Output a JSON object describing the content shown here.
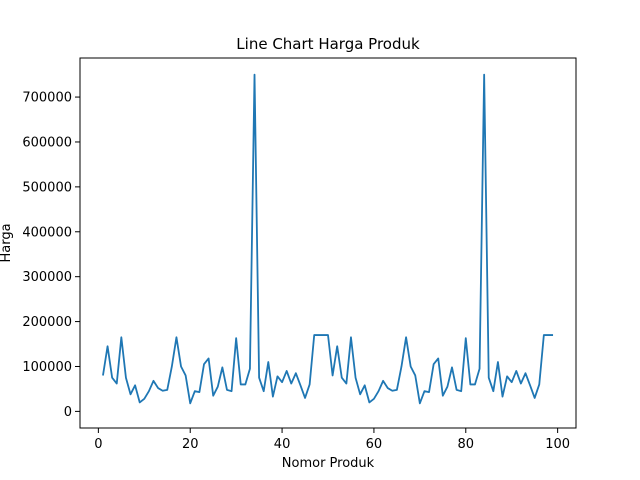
{
  "chart_data": {
    "type": "line",
    "title": "Line Chart Harga Produk",
    "xlabel": "Nomor Produk",
    "ylabel": "Harga",
    "xlim": [
      -4,
      104
    ],
    "ylim": [
      -37000,
      787000
    ],
    "xticks": [
      0,
      20,
      40,
      60,
      80,
      100
    ],
    "yticks": [
      0,
      100000,
      200000,
      300000,
      400000,
      500000,
      600000,
      700000
    ],
    "x": [
      1,
      2,
      3,
      4,
      5,
      6,
      7,
      8,
      9,
      10,
      11,
      12,
      13,
      14,
      15,
      16,
      17,
      18,
      19,
      20,
      21,
      22,
      23,
      24,
      25,
      26,
      27,
      28,
      29,
      30,
      31,
      32,
      33,
      34,
      35,
      36,
      37,
      38,
      39,
      40,
      41,
      42,
      43,
      44,
      45,
      46,
      47,
      48,
      49,
      50,
      51,
      52,
      53,
      54,
      55,
      56,
      57,
      58,
      59,
      60,
      61,
      62,
      63,
      64,
      65,
      66,
      67,
      68,
      69,
      70,
      71,
      72,
      73,
      74,
      75,
      76,
      77,
      78,
      79,
      80,
      81,
      82,
      83,
      84,
      85,
      86,
      87,
      88,
      89,
      90,
      91,
      92,
      93,
      94,
      95,
      96,
      97,
      98,
      99
    ],
    "series": [
      {
        "color": "#1f77b4",
        "values": [
          80000,
          145000,
          75000,
          62000,
          165000,
          75000,
          38000,
          58000,
          20000,
          28000,
          45000,
          68000,
          52000,
          46000,
          48000,
          100000,
          165000,
          100000,
          80000,
          18000,
          45000,
          43000,
          105000,
          118000,
          35000,
          55000,
          98000,
          48000,
          45000,
          163000,
          60000,
          60000,
          95000,
          750000,
          75000,
          45000,
          110000,
          33000,
          78000,
          65000,
          90000,
          62000,
          85000,
          58000,
          30000,
          60000,
          170000,
          170000,
          170000,
          170000,
          80000,
          145000,
          75000,
          62000,
          165000,
          75000,
          38000,
          58000,
          20000,
          28000,
          45000,
          68000,
          52000,
          46000,
          48000,
          100000,
          165000,
          100000,
          80000,
          18000,
          45000,
          43000,
          105000,
          118000,
          35000,
          55000,
          98000,
          48000,
          45000,
          163000,
          60000,
          60000,
          95000,
          750000,
          75000,
          45000,
          110000,
          33000,
          78000,
          65000,
          90000,
          62000,
          85000,
          58000,
          30000,
          60000,
          170000,
          170000,
          170000
        ]
      }
    ],
    "grid": false,
    "legend": "none"
  }
}
